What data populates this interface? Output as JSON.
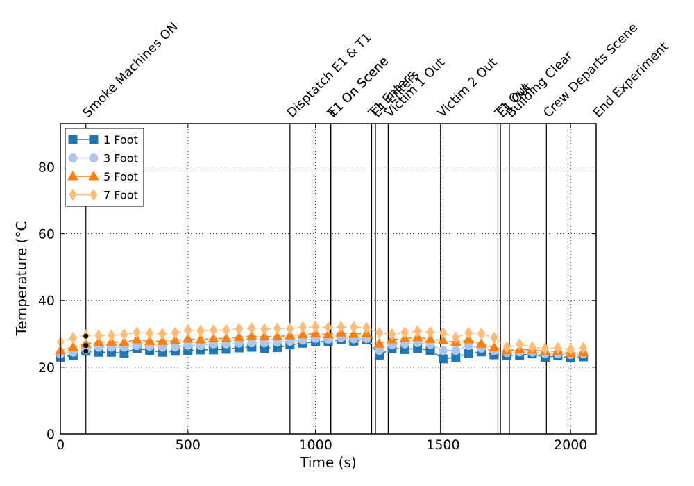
{
  "chart_data": {
    "type": "line",
    "xlabel": "Time (s)",
    "ylabel": "Temperature (°C",
    "xlim": [
      0,
      2100
    ],
    "ylim": [
      0,
      93
    ],
    "xticks": [
      0,
      500,
      1000,
      1500,
      2000
    ],
    "yticks": [
      0,
      20,
      40,
      60,
      80
    ],
    "grid": true,
    "legend_position": "top-left",
    "events": [
      {
        "label": "Smoke Machines ON",
        "x": 100
      },
      {
        "label": "Disptatch E1 & T1",
        "x": 900
      },
      {
        "label": "E1 On Scene",
        "x": 1060
      },
      {
        "label": "T1 On Scene",
        "x": 1060
      },
      {
        "label": "T1 Enters",
        "x": 1220
      },
      {
        "label": "E1 Enters",
        "x": 1235
      },
      {
        "label": "Victim 1 Out",
        "x": 1285
      },
      {
        "label": "Victim 2 Out",
        "x": 1490
      },
      {
        "label": "T1 Out",
        "x": 1715
      },
      {
        "label": "E1 Out",
        "x": 1725
      },
      {
        "label": "Building Clear",
        "x": 1760
      },
      {
        "label": "Crew Departs Scene",
        "x": 1905
      },
      {
        "label": "End Experiment",
        "x": 2100
      }
    ],
    "x": [
      0,
      50,
      100,
      150,
      200,
      250,
      300,
      350,
      400,
      450,
      500,
      550,
      600,
      650,
      700,
      750,
      800,
      850,
      900,
      950,
      1000,
      1050,
      1100,
      1150,
      1200,
      1250,
      1300,
      1350,
      1400,
      1450,
      1500,
      1550,
      1600,
      1650,
      1700,
      1750,
      1800,
      1850,
      1900,
      1950,
      2000,
      2050
    ],
    "series": [
      {
        "name": "1 Foot",
        "color": "#1f77b4",
        "marker": "square",
        "values": [
          23.0,
          23.5,
          24.8,
          24.5,
          24.5,
          24.2,
          25.7,
          25.0,
          24.5,
          24.8,
          25.0,
          25.2,
          25.2,
          25.4,
          25.8,
          26.0,
          25.7,
          25.9,
          26.7,
          27.2,
          27.6,
          27.7,
          28.3,
          27.8,
          28.3,
          23.6,
          25.7,
          25.3,
          25.7,
          25.0,
          22.5,
          23.0,
          24.1,
          24.6,
          23.7,
          23.5,
          23.6,
          24.0,
          23.0,
          23.4,
          22.8,
          23.1
        ]
      },
      {
        "name": "3 Foot",
        "color": "#aec7e8",
        "marker": "circle",
        "values": [
          24.0,
          24.5,
          25.3,
          26.0,
          26.0,
          26.0,
          26.5,
          26.3,
          26.0,
          26.1,
          26.6,
          26.5,
          27.0,
          27.0,
          27.2,
          27.3,
          27.3,
          27.5,
          27.8,
          28.1,
          28.6,
          28.4,
          28.8,
          28.5,
          28.6,
          25.0,
          26.7,
          27.0,
          27.4,
          26.8,
          25.0,
          25.0,
          26.5,
          25.7,
          24.9,
          24.4,
          24.6,
          24.5,
          24.1,
          24.0,
          23.8,
          24.0
        ]
      },
      {
        "name": "5 Foot",
        "color": "#ff7f0e",
        "marker": "triangle",
        "values": [
          25.0,
          26.0,
          27.0,
          27.5,
          27.6,
          27.5,
          28.3,
          27.8,
          27.8,
          28.0,
          28.5,
          28.3,
          28.6,
          28.6,
          29.0,
          29.3,
          29.2,
          29.2,
          29.5,
          29.8,
          30.1,
          29.8,
          30.3,
          29.9,
          30.1,
          27.0,
          28.3,
          28.6,
          29.0,
          28.4,
          28.0,
          27.5,
          28.3,
          27.0,
          25.9,
          25.0,
          25.3,
          25.2,
          24.8,
          24.8,
          24.2,
          24.4
        ]
      },
      {
        "name": "7 Foot",
        "color": "#ffbb78",
        "marker": "diamond",
        "values": [
          27.5,
          28.8,
          29.5,
          29.5,
          29.5,
          29.8,
          30.4,
          30.2,
          30.0,
          30.3,
          31.1,
          30.9,
          31.1,
          31.1,
          31.5,
          31.7,
          31.4,
          31.6,
          31.5,
          32.0,
          32.1,
          31.9,
          32.1,
          32.0,
          31.8,
          30.3,
          29.9,
          30.4,
          30.8,
          30.5,
          30.3,
          28.9,
          30.3,
          30.0,
          28.8,
          26.0,
          26.9,
          26.0,
          25.5,
          25.8,
          25.3,
          25.8
        ]
      }
    ],
    "markers_at_event": {
      "x": 100,
      "values": [
        24.8,
        26.5,
        29.3
      ],
      "color": "#000000"
    }
  }
}
